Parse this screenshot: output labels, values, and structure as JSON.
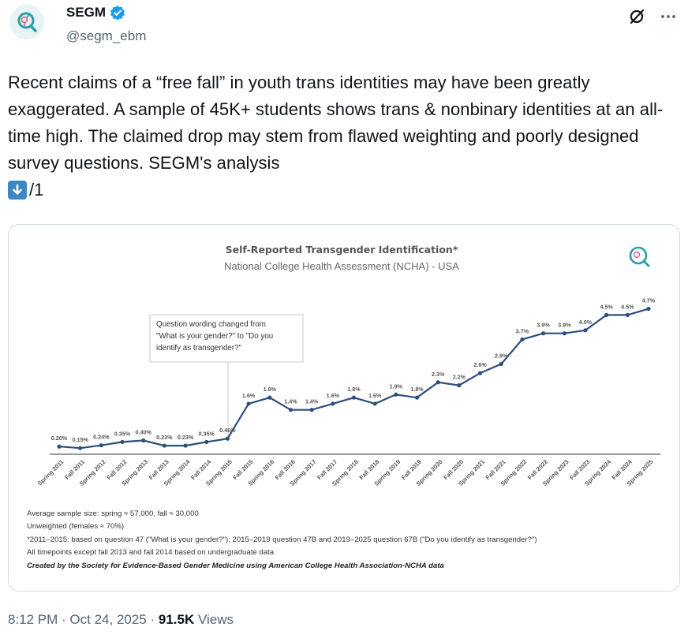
{
  "account": {
    "name": "SEGM",
    "handle": "@segm_ebm",
    "verified": true,
    "brand_color": "#2a9fa8"
  },
  "icons": {
    "grok": "slash-circle-icon",
    "more": "more-dots-icon",
    "verified": "verified-badge-icon",
    "down_arrow": "down-arrow-emoji-icon"
  },
  "tweet": {
    "line1": "Recent claims of a “free fall” in youth trans identities may have been greatly exaggerated. A sample of 45K+ students shows trans & nonbinary identities at an all-time high. The claimed drop may stem from flawed weighting and poorly designed survey questions. SEGM's analysis",
    "line2_suffix": "/1"
  },
  "chart_data": {
    "type": "line",
    "title": "Self-Reported Transgender Identification*",
    "subtitle": "National College Health Assessment (NCHA) - USA",
    "x": [
      "Spring 2011",
      "Fall 2011",
      "Spring 2012",
      "Fall 2012",
      "Spring 2013",
      "Fall 2013",
      "Spring 2014",
      "Fall 2014",
      "Spring 2015",
      "Fall 2015",
      "Spring 2016",
      "Fall 2016",
      "Spring 2017",
      "Fall 2017",
      "Spring 2018",
      "Fall 2018",
      "Spring 2019",
      "Fall 2019",
      "Spring 2020",
      "Fall 2020",
      "Spring 2021",
      "Fall 2021",
      "Spring 2022",
      "Fall 2022",
      "Spring 2023",
      "Fall 2023",
      "Spring 2024",
      "Fall 2024",
      "Spring 2025"
    ],
    "values": [
      0.2,
      0.15,
      0.24,
      0.35,
      0.4,
      0.23,
      0.23,
      0.35,
      0.46,
      1.6,
      1.8,
      1.4,
      1.4,
      1.6,
      1.8,
      1.6,
      1.9,
      1.8,
      2.3,
      2.2,
      2.6,
      2.9,
      3.7,
      3.9,
      3.9,
      4.0,
      4.5,
      4.5,
      4.7
    ],
    "labels": [
      "0.20%",
      "0.15%",
      "0.24%",
      "0.35%",
      "0.40%",
      "0.23%",
      "0.23%",
      "0.35%",
      "0.46%",
      "1.6%",
      "1.8%",
      "1.4%",
      "1.4%",
      "1.6%",
      "1.8%",
      "1.6%",
      "1.9%",
      "1.8%",
      "2.3%",
      "2.2%",
      "2.6%",
      "2.9%",
      "3.7%",
      "3.9%",
      "3.9%",
      "4.0%",
      "4.5%",
      "4.5%",
      "4.7%"
    ],
    "ylim": [
      0,
      5
    ],
    "grid": false,
    "line_color": "#2e4e7d",
    "annotation": {
      "lines": [
        "Question wording changed from",
        "\"What is your gender?\" to \"Do you",
        "identify as transgender?\""
      ]
    },
    "notes": [
      "Average sample size: spring ≈ 57,000, fall ≈ 30,000",
      "Unweighted (females ≈ 70%)",
      "*2011–2015: based on question 47 (\"What is your gender?\"); 2015–2019 question 47B and 2019–2025 question 67B (\"Do you identify as transgender?\")",
      "All timepoints except fall 2013 and fall 2014 based on undergraduate data"
    ],
    "credit": "Created by the Society for Evidence-Based Gender Medicine using American College Health Association-NCHA data"
  },
  "meta": {
    "time": "8:12 PM",
    "sep1": " · ",
    "date": "Oct 24, 2025",
    "sep2": " · ",
    "views_count": "91.5K",
    "views_label": " Views"
  }
}
